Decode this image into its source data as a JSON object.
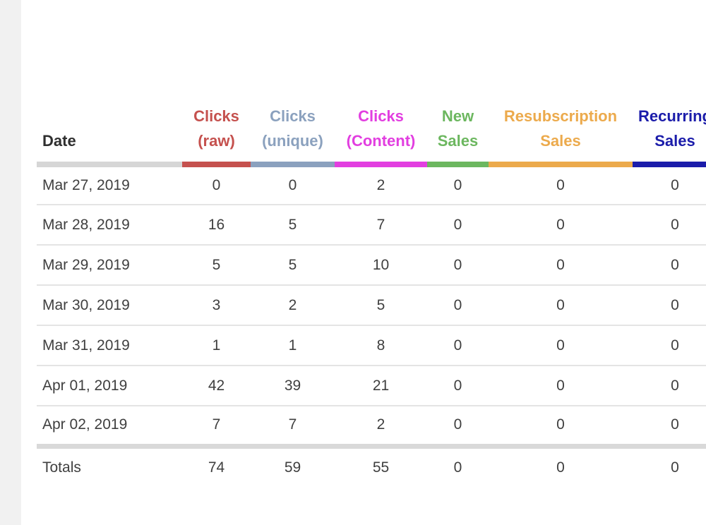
{
  "page": {
    "background": "#ffffff",
    "left_rail_color": "#f1f1f1"
  },
  "table": {
    "columns": [
      {
        "id": "date",
        "lines": [
          "Date"
        ],
        "text_color": "#2f2f2f",
        "bar_color": "#d6d6d6",
        "align": "left"
      },
      {
        "id": "clicks-raw",
        "lines": [
          "Clicks",
          "(raw)"
        ],
        "text_color": "#c5514e",
        "bar_color": "#c5514e",
        "align": "center"
      },
      {
        "id": "clicks-unique",
        "lines": [
          "Clicks",
          "(unique)"
        ],
        "text_color": "#8ba1be",
        "bar_color": "#8ba1be",
        "align": "center"
      },
      {
        "id": "clicks-content",
        "lines": [
          "Clicks",
          "(Content)"
        ],
        "text_color": "#e23ee0",
        "bar_color": "#e23ee0",
        "align": "center"
      },
      {
        "id": "new-sales",
        "lines": [
          "New",
          "Sales"
        ],
        "text_color": "#6cb75f",
        "bar_color": "#6cb75f",
        "align": "center"
      },
      {
        "id": "resubscription-sales",
        "lines": [
          "Resubscription",
          "Sales"
        ],
        "text_color": "#ecaa4c",
        "bar_color": "#ecaa4c",
        "align": "center"
      },
      {
        "id": "recurring-sales",
        "lines": [
          "Recurring",
          "Sales"
        ],
        "text_color": "#1b1caa",
        "bar_color": "#1b1caa",
        "align": "center"
      }
    ],
    "rows": [
      {
        "date": "Mar 27, 2019",
        "values": [
          "0",
          "0",
          "2",
          "0",
          "0",
          "0"
        ]
      },
      {
        "date": "Mar 28, 2019",
        "values": [
          "16",
          "5",
          "7",
          "0",
          "0",
          "0"
        ]
      },
      {
        "date": "Mar 29, 2019",
        "values": [
          "5",
          "5",
          "10",
          "0",
          "0",
          "0"
        ]
      },
      {
        "date": "Mar 30, 2019",
        "values": [
          "3",
          "2",
          "5",
          "0",
          "0",
          "0"
        ]
      },
      {
        "date": "Mar 31, 2019",
        "values": [
          "1",
          "1",
          "8",
          "0",
          "0",
          "0"
        ]
      },
      {
        "date": "Apr 01, 2019",
        "values": [
          "42",
          "39",
          "21",
          "0",
          "0",
          "0"
        ]
      },
      {
        "date": "Apr 02, 2019",
        "values": [
          "7",
          "7",
          "2",
          "0",
          "0",
          "0"
        ]
      }
    ],
    "totals_row": {
      "label": "Totals",
      "values": [
        "74",
        "59",
        "55",
        "0",
        "0",
        "0"
      ]
    }
  }
}
